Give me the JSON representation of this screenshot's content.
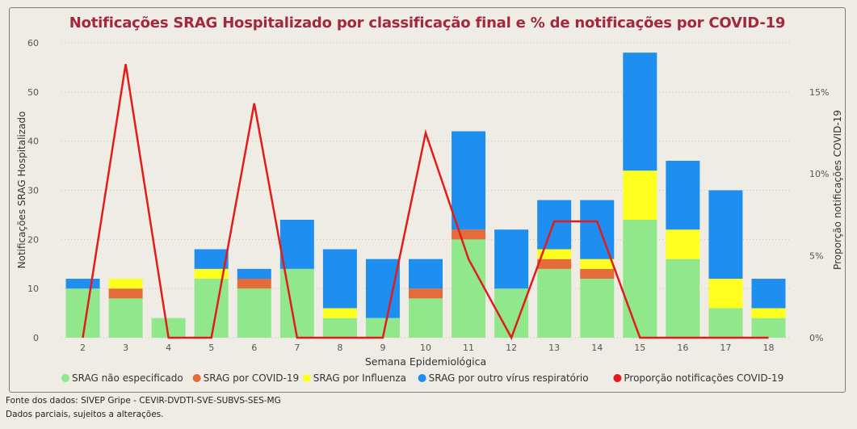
{
  "chart_data": {
    "type": "bar",
    "stacked": true,
    "title": "Notificações SRAG Hospitalizado por classificação final e % de notificações por COVID-19",
    "xlabel": "Semana Epidemiológica",
    "ylabel": "Notificações SRAG Hospitalizado",
    "y2label": "Proporção notificações COVID-19",
    "categories": [
      "2",
      "3",
      "4",
      "5",
      "6",
      "7",
      "8",
      "9",
      "10",
      "11",
      "12",
      "13",
      "14",
      "15",
      "16",
      "17",
      "18"
    ],
    "ylim": [
      0,
      60
    ],
    "yticks": [
      "0",
      "10",
      "20",
      "30",
      "40",
      "50",
      "60"
    ],
    "y2lim": [
      0,
      0.18
    ],
    "y2ticks": [
      "0%",
      "5%",
      "10%",
      "15%"
    ],
    "series": [
      {
        "name": "SRAG não especificado",
        "color": "#90e78c",
        "values": [
          10,
          8,
          4,
          12,
          10,
          14,
          4,
          4,
          8,
          20,
          10,
          14,
          12,
          24,
          16,
          6,
          4
        ]
      },
      {
        "name": "SRAG por COVID-19",
        "color": "#e46c3a",
        "values": [
          0,
          2,
          0,
          0,
          2,
          0,
          0,
          0,
          2,
          2,
          0,
          2,
          2,
          0,
          0,
          0,
          0
        ]
      },
      {
        "name": "SRAG por Influenza",
        "color": "#ffff1e",
        "values": [
          0,
          2,
          0,
          2,
          0,
          0,
          2,
          0,
          0,
          0,
          0,
          2,
          2,
          10,
          6,
          6,
          2
        ]
      },
      {
        "name": "SRAG por outro vírus respiratório",
        "color": "#1e8ff0",
        "values": [
          2,
          0,
          0,
          4,
          2,
          10,
          12,
          12,
          6,
          20,
          12,
          10,
          12,
          24,
          14,
          18,
          6
        ]
      }
    ],
    "line": {
      "name": "Proporção notificações COVID-19",
      "color": "#e31b1b",
      "values": [
        0,
        0.167,
        0,
        0,
        0.143,
        0,
        0,
        0,
        0.125,
        0.048,
        0,
        0.071,
        0.071,
        0,
        0,
        0,
        0
      ]
    },
    "legend": "bottom",
    "grid": true
  },
  "footer": {
    "source": "Fonte dos dados: SIVEP Gripe - CEVIR-DVDTI-SVE-SUBVS-SES-MG",
    "note": "Dados parciais, sujeitos a alterações."
  }
}
